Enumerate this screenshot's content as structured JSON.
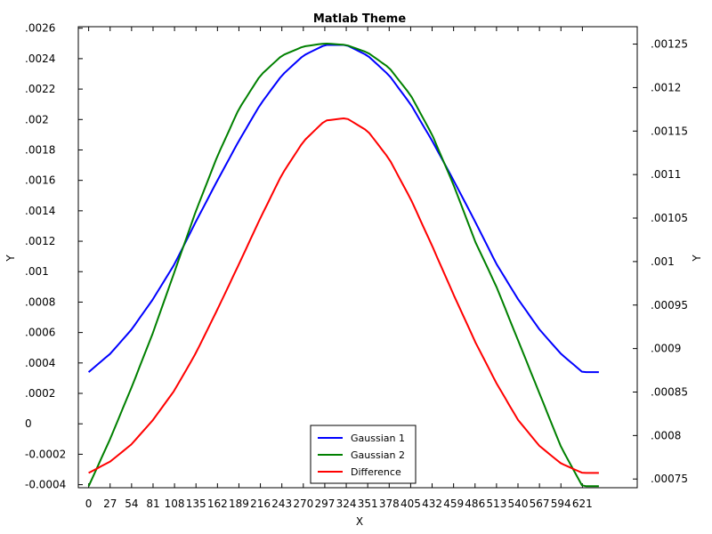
{
  "chart_data": {
    "type": "line",
    "title": "Matlab Theme",
    "xlabel": "X",
    "ylabel": "Y",
    "y2label": "Y",
    "xlim": [
      0,
      648
    ],
    "ylim": [
      -0.00042,
      0.00261
    ],
    "y2lim": [
      0.00074,
      0.00127
    ],
    "x_ticks": [
      0,
      27,
      54,
      81,
      108,
      135,
      162,
      189,
      216,
      243,
      270,
      297,
      324,
      351,
      378,
      405,
      432,
      459,
      486,
      513,
      540,
      567,
      594,
      621
    ],
    "x_tick_labels": [
      "0",
      "27",
      "54",
      "81",
      "108",
      "135",
      "162",
      "189",
      "216",
      "243",
      "270",
      "297",
      "324",
      "351",
      "378",
      "405",
      "432",
      "459",
      "486",
      "513",
      "540",
      "567",
      "594",
      "621"
    ],
    "y_ticks": [
      -0.0004,
      -0.0002,
      0,
      0.0002,
      0.0004,
      0.0006,
      0.0008,
      0.001,
      0.0012,
      0.0014,
      0.0016,
      0.0018,
      0.002,
      0.0022,
      0.0024,
      0.0026
    ],
    "y_tick_labels": [
      "-0.0004",
      "-0.0002",
      "0",
      ".0002",
      ".0004",
      ".0006",
      ".0008",
      ".001",
      ".0012",
      ".0014",
      ".0016",
      ".0018",
      ".002",
      ".0022",
      ".0024",
      ".0026"
    ],
    "y2_ticks": [
      0.00075,
      0.0008,
      0.00085,
      0.0009,
      0.00095,
      0.001,
      0.00105,
      0.0011,
      0.00115,
      0.0012,
      0.00125
    ],
    "y2_tick_labels": [
      ".00075",
      ".0008",
      ".00085",
      ".0009",
      ".00095",
      ".001",
      ".00105",
      ".0011",
      ".00115",
      ".0012",
      ".00125"
    ],
    "grid": false,
    "legend_position": "bottom-center",
    "x": [
      0,
      27,
      54,
      81,
      108,
      135,
      162,
      189,
      216,
      243,
      270,
      297,
      324,
      351,
      378,
      405,
      432,
      459,
      486,
      513,
      540,
      567,
      594,
      621,
      648
    ],
    "series": [
      {
        "name": "Gaussian 1",
        "color": "#0000ff",
        "axis": "left",
        "values": [
          0.00034,
          0.00046,
          0.00062,
          0.00082,
          0.00105,
          0.00133,
          0.0016,
          0.00186,
          0.0021,
          0.00229,
          0.00242,
          0.00249,
          0.00249,
          0.00242,
          0.00229,
          0.0021,
          0.00186,
          0.0016,
          0.00133,
          0.00105,
          0.00082,
          0.00062,
          0.00046,
          0.00034,
          0.00034
        ]
      },
      {
        "name": "Gaussian 2",
        "color": "#008000",
        "axis": "left",
        "values": [
          -0.00041,
          -0.0001,
          0.00024,
          0.0006,
          0.001,
          0.0014,
          0.00176,
          0.00207,
          0.00229,
          0.00242,
          0.00248,
          0.0025,
          0.00249,
          0.00244,
          0.00234,
          0.00216,
          0.0019,
          0.00157,
          0.0012,
          0.0009,
          0.00055,
          0.0002,
          -0.00015,
          -0.00041,
          -0.00041
        ]
      },
      {
        "name": "Difference",
        "color": "#ff0000",
        "axis": "right",
        "values": [
          0.000757,
          0.00077,
          0.00079,
          0.000818,
          0.000852,
          0.000895,
          0.000945,
          0.000997,
          0.00105,
          0.0011,
          0.001138,
          0.001162,
          0.001165,
          0.00115,
          0.001118,
          0.001072,
          0.001018,
          0.000962,
          0.000908,
          0.00086,
          0.000818,
          0.000788,
          0.000768,
          0.000757,
          0.000757
        ]
      }
    ]
  }
}
